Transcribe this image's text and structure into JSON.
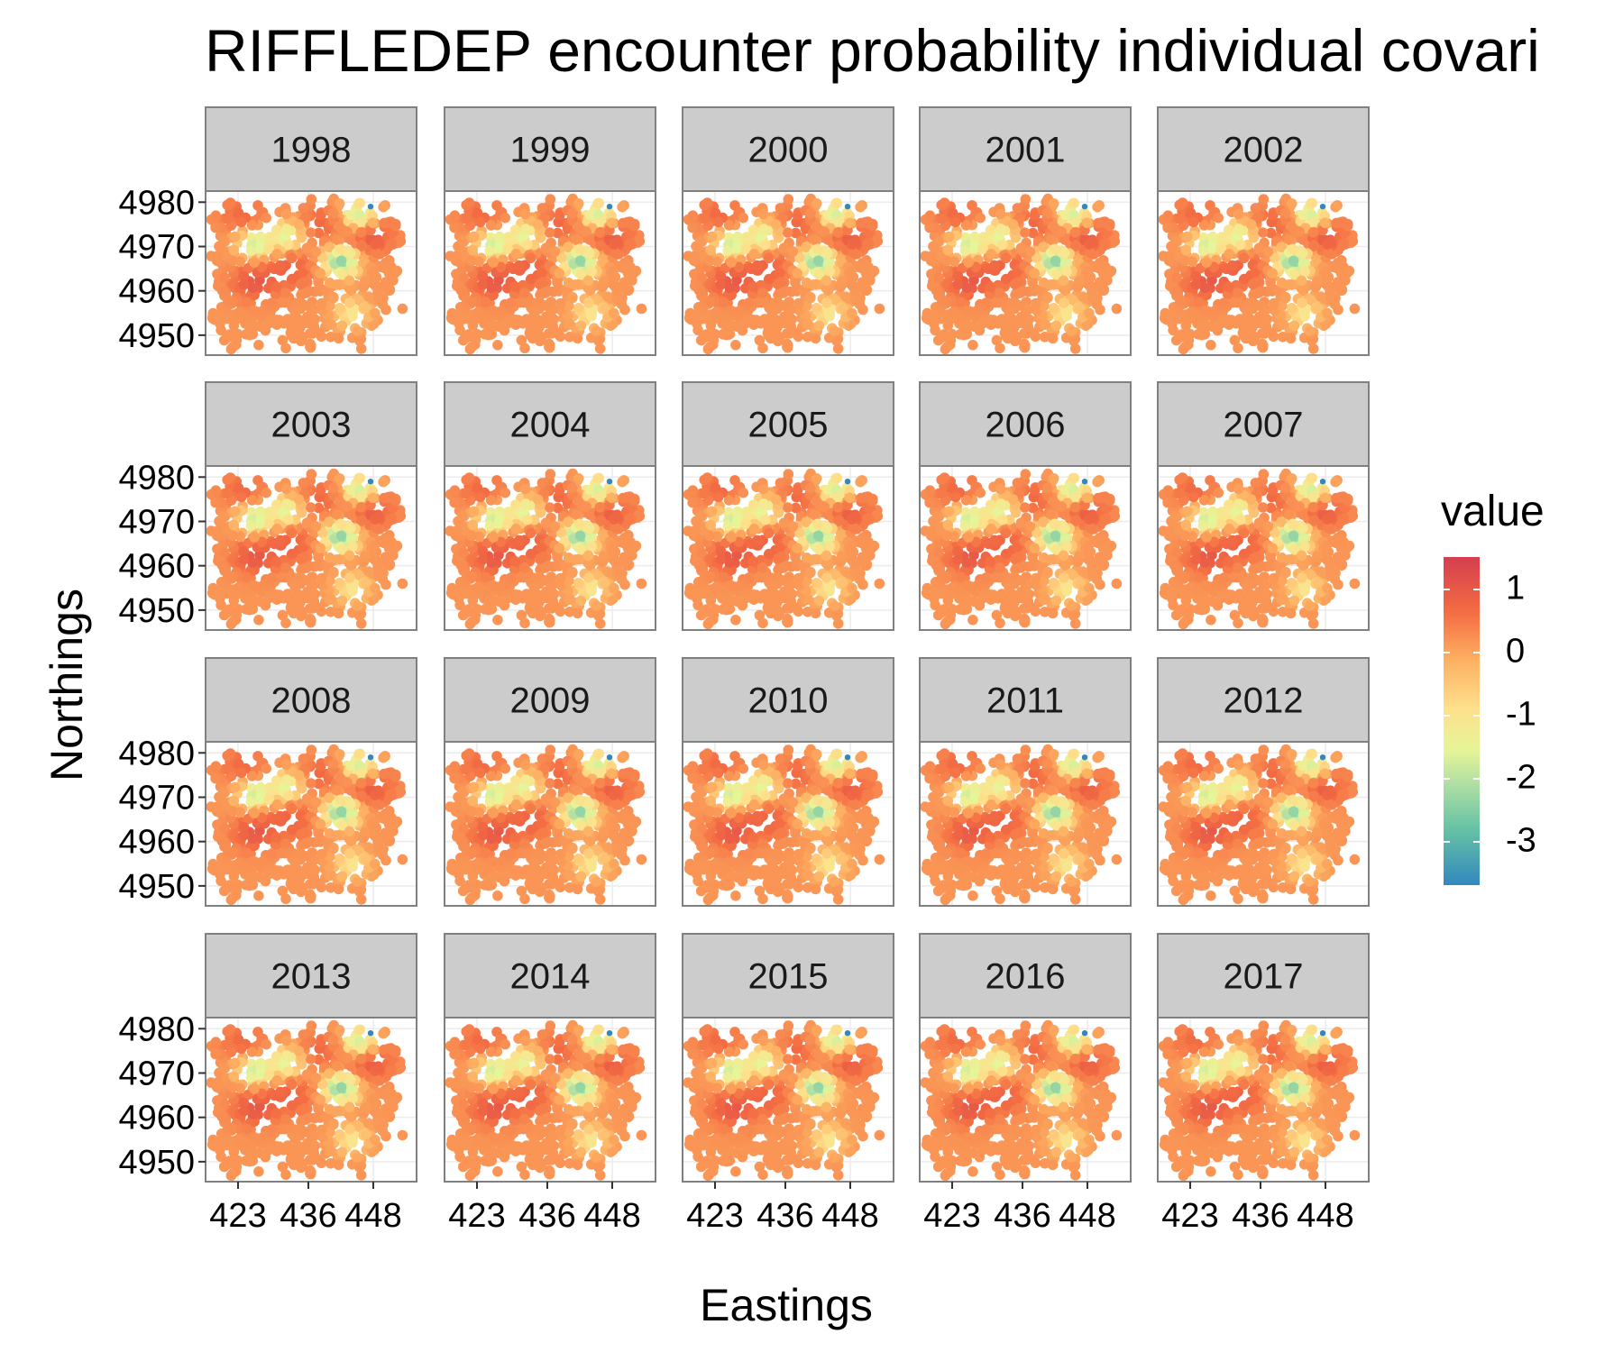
{
  "chart_data": {
    "type": "heatmap",
    "subtype": "faceted spatial map (small multiples by year)",
    "title": "RIFFLEDEP encounter probability individual covari",
    "xlabel": "Eastings",
    "ylabel": "Northings",
    "facets": [
      "1998",
      "1999",
      "2000",
      "2001",
      "2002",
      "2003",
      "2004",
      "2005",
      "2006",
      "2007",
      "2008",
      "2009",
      "2010",
      "2011",
      "2012",
      "2013",
      "2014",
      "2015",
      "2016",
      "2017"
    ],
    "facet_layout": {
      "rows": 4,
      "cols": 5
    },
    "x_ticks": [
      423,
      436,
      448
    ],
    "x_tick_labels": [
      "423",
      "436",
      "448"
    ],
    "y_ticks": [
      4950,
      4960,
      4970,
      4980
    ],
    "y_tick_labels": [
      "4950",
      "4960",
      "4970",
      "4980"
    ],
    "xlim": [
      417,
      456
    ],
    "ylim": [
      4945.5,
      4982.5
    ],
    "legend": {
      "title": "value",
      "placement": "right",
      "range": [
        -3.7,
        1.5
      ],
      "ticks": [
        1,
        0,
        -1,
        -2,
        -3
      ],
      "tick_labels": [
        "1",
        "0",
        "-1",
        "-2",
        "-3"
      ],
      "colors": [
        "#3288bd",
        "#66c2a5",
        "#abdda4",
        "#e6f598",
        "#fee08b",
        "#fdae61",
        "#f46d43",
        "#d53e4f"
      ]
    },
    "grid": true,
    "spatial_pattern": {
      "background_value": 0.3,
      "high_zones": [
        {
          "x": 426,
          "y": 4962,
          "value": 1.3
        },
        {
          "x": 433,
          "y": 4965,
          "value": 1.1
        },
        {
          "x": 438,
          "y": 4975,
          "value": 1.0
        },
        {
          "x": 447.5,
          "y": 4973,
          "value": 1.4
        },
        {
          "x": 424,
          "y": 4977,
          "value": 1.0
        }
      ],
      "low_zones": [
        {
          "x": 442,
          "y": 4966.5,
          "value": -3.0
        },
        {
          "x": 445.5,
          "y": 4977,
          "value": -2.3
        },
        {
          "x": 444,
          "y": 4955,
          "value": -1.2
        },
        {
          "x": 426,
          "y": 4970.5,
          "value": -2.1
        },
        {
          "x": 432,
          "y": 4972.5,
          "value": -1.8
        }
      ],
      "minimum_point": {
        "x": 447.5,
        "y": 4979,
        "value": -3.7
      }
    }
  }
}
